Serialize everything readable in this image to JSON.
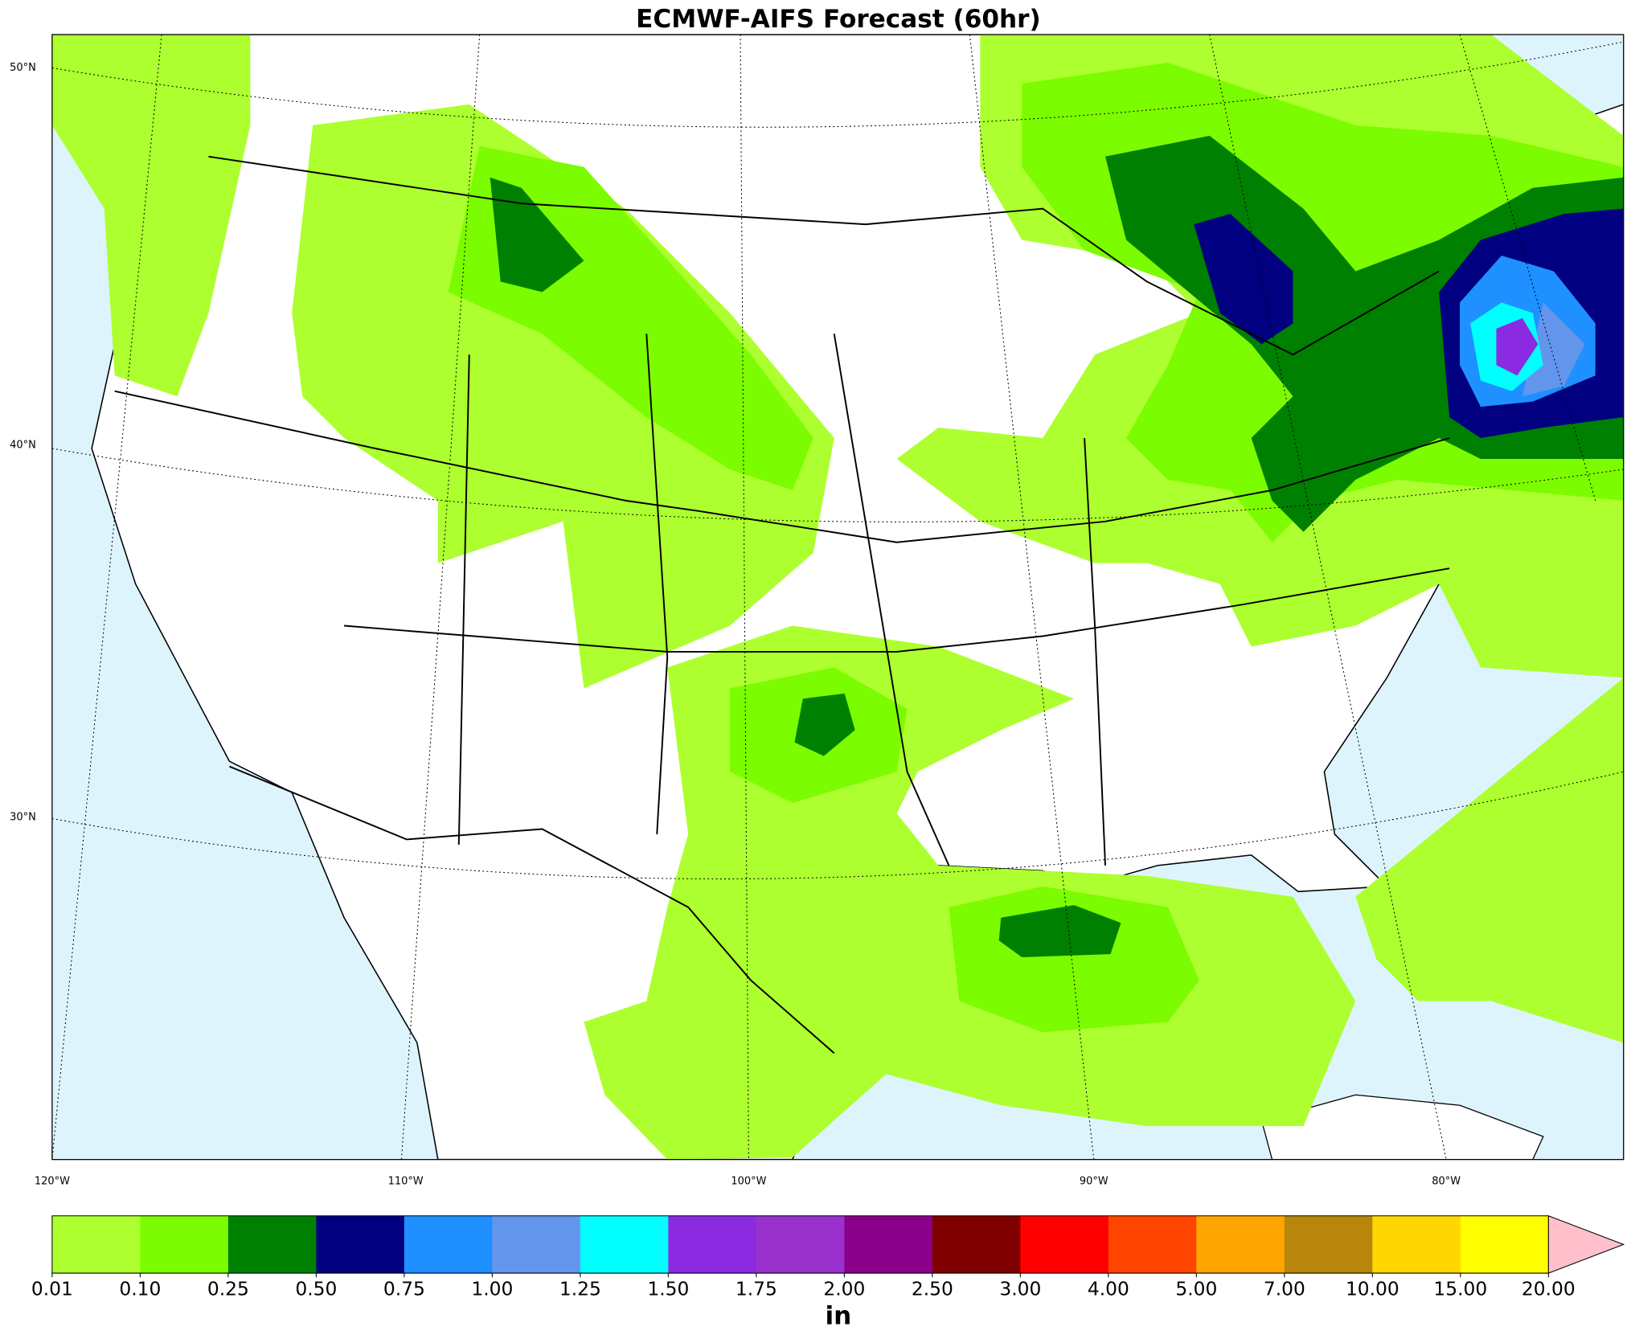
{
  "title": "ECMWF-AIFS Forecast (60hr)",
  "map": {
    "lat_labels": [
      "50°N",
      "40°N",
      "30°N"
    ],
    "lon_labels": [
      "120°W",
      "110°W",
      "100°W",
      "90°W",
      "80°W"
    ]
  },
  "colorbar": {
    "ticks": [
      {
        "value": 0.01,
        "label": "0.01"
      },
      {
        "value": 0.1,
        "label": "0.10"
      },
      {
        "value": 0.25,
        "label": "0.25"
      },
      {
        "value": 0.5,
        "label": "0.50"
      },
      {
        "value": 0.75,
        "label": "0.75"
      },
      {
        "value": 1,
        "label": "1.00"
      },
      {
        "value": 1.25,
        "label": "1.25"
      },
      {
        "value": 1.5,
        "label": "1.50"
      },
      {
        "value": 1.75,
        "label": "1.75"
      },
      {
        "value": 2,
        "label": "2.00"
      },
      {
        "value": 2.5,
        "label": "2.50"
      },
      {
        "value": 3,
        "label": "3.00"
      },
      {
        "value": 4,
        "label": "4.00"
      },
      {
        "value": 5,
        "label": "5.00"
      },
      {
        "value": 7,
        "label": "7.00"
      },
      {
        "value": 10,
        "label": "10.00"
      },
      {
        "value": 15,
        "label": "15.00"
      },
      {
        "value": 20,
        "label": "20.00"
      }
    ],
    "colors": [
      "#adff2f",
      "#7cfc00",
      "#008000",
      "#000080",
      "#1e90ff",
      "#6495ed",
      "#00ffff",
      "#8a2be2",
      "#9932cc",
      "#8b008b",
      "#800000",
      "#ff0000",
      "#ff4500",
      "#ffa500",
      "#b8860b",
      "#ffd700",
      "#ffff00"
    ],
    "extend_color": "#ffc0cb",
    "unit": "in"
  }
}
